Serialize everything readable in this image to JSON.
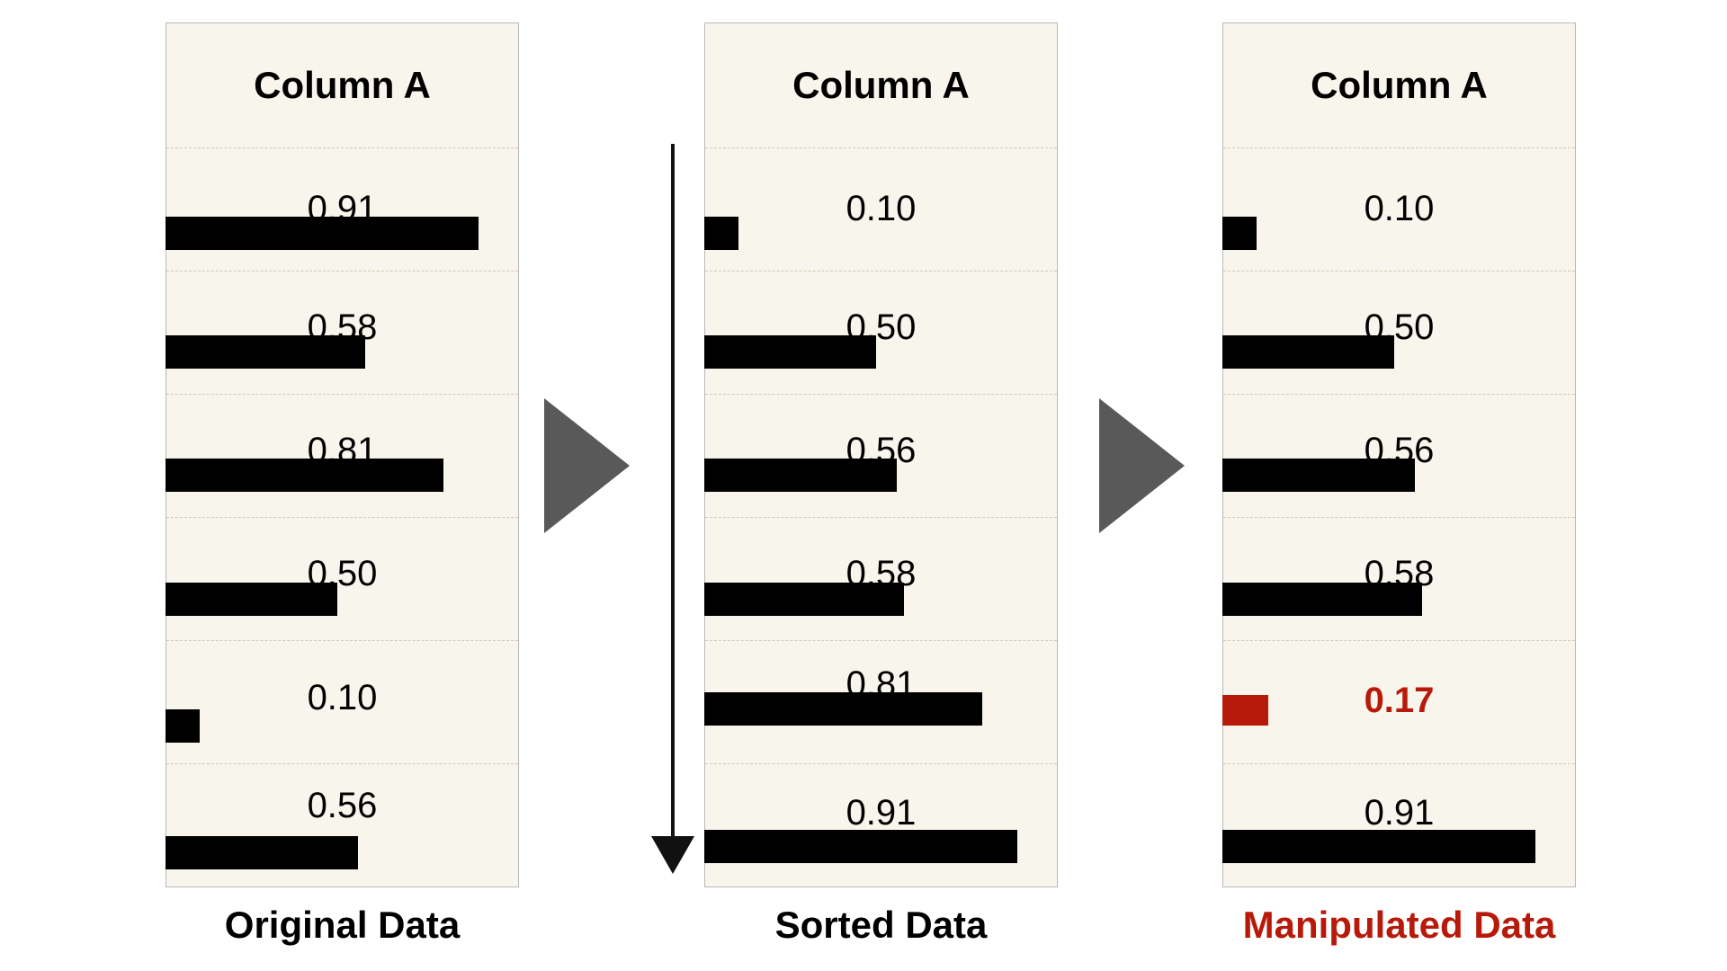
{
  "panels": [
    {
      "header": "Column A",
      "caption": "Original Data",
      "rows": [
        {
          "label": "0.91",
          "value": 0.91
        },
        {
          "label": "0.58",
          "value": 0.58
        },
        {
          "label": "0.81",
          "value": 0.81
        },
        {
          "label": "0.50",
          "value": 0.5
        },
        {
          "label": "0.10",
          "value": 0.1
        },
        {
          "label": "0.56",
          "value": 0.56
        }
      ]
    },
    {
      "header": "Column A",
      "caption": "Sorted Data",
      "rows": [
        {
          "label": "0.10",
          "value": 0.1
        },
        {
          "label": "0.50",
          "value": 0.5
        },
        {
          "label": "0.56",
          "value": 0.56
        },
        {
          "label": "0.58",
          "value": 0.58
        },
        {
          "label": "0.81",
          "value": 0.81
        },
        {
          "label": "0.91",
          "value": 0.91
        }
      ]
    },
    {
      "header": "Column A",
      "caption": "Manipulated Data",
      "rows": [
        {
          "label": "0.10",
          "value": 0.1
        },
        {
          "label": "0.50",
          "value": 0.5
        },
        {
          "label": "0.56",
          "value": 0.56
        },
        {
          "label": "0.58",
          "value": 0.58
        },
        {
          "label": "0.17",
          "value": 0.17,
          "highlight": true
        },
        {
          "label": "0.91",
          "value": 0.91
        }
      ]
    }
  ],
  "colors": {
    "panel_background": "#f8f6ec",
    "bar": "#000000",
    "highlight": "#b71a0a",
    "arrow": "#595959"
  },
  "icons": [
    "right-triangle-arrow-icon",
    "down-sort-arrow-icon"
  ]
}
